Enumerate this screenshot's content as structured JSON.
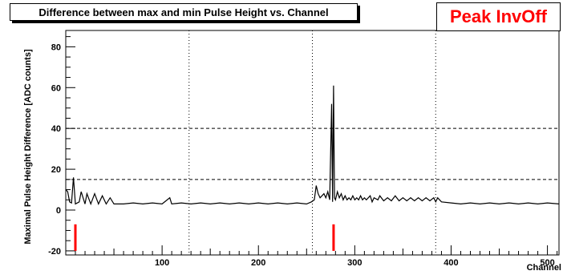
{
  "chart_data": {
    "type": "line",
    "title": "Difference between max and min Pulse Height vs. Channel",
    "annotation": "Peak InvOff",
    "xlabel": "Channel",
    "ylabel": "Maximal Pulse Height Difference [ADC counts]",
    "xlim": [
      0,
      512
    ],
    "ylim": [
      -22,
      88
    ],
    "x_ticks": [
      100,
      200,
      300,
      400,
      500
    ],
    "y_ticks": [
      -20,
      0,
      20,
      40,
      60,
      80
    ],
    "x_tick_labels": [
      "100",
      "200",
      "300",
      "400",
      "500"
    ],
    "y_tick_labels": [
      "-20",
      "0",
      "20",
      "40",
      "60",
      "80"
    ],
    "vertical_dashed_lines_x": [
      128,
      256,
      384
    ],
    "horizontal_dashed_lines_y": [
      15,
      40
    ],
    "series": [
      {
        "color": "#000000",
        "points": [
          [
            0,
            10
          ],
          [
            2,
            9
          ],
          [
            4,
            4
          ],
          [
            6,
            3.5
          ],
          [
            8,
            16
          ],
          [
            10,
            3
          ],
          [
            14,
            4
          ],
          [
            16,
            9
          ],
          [
            20,
            3
          ],
          [
            22,
            8
          ],
          [
            26,
            3
          ],
          [
            30,
            8
          ],
          [
            34,
            3
          ],
          [
            38,
            7
          ],
          [
            42,
            3
          ],
          [
            46,
            6
          ],
          [
            50,
            3
          ],
          [
            60,
            3
          ],
          [
            70,
            3.5
          ],
          [
            80,
            3
          ],
          [
            90,
            3.5
          ],
          [
            100,
            3
          ],
          [
            108,
            6
          ],
          [
            110,
            3
          ],
          [
            120,
            3.5
          ],
          [
            130,
            3
          ],
          [
            140,
            3.5
          ],
          [
            150,
            3
          ],
          [
            160,
            3.5
          ],
          [
            170,
            3
          ],
          [
            180,
            3.5
          ],
          [
            190,
            3
          ],
          [
            200,
            3.5
          ],
          [
            210,
            3
          ],
          [
            220,
            3.5
          ],
          [
            230,
            3
          ],
          [
            240,
            3.5
          ],
          [
            250,
            3
          ],
          [
            255,
            4
          ],
          [
            258,
            5
          ],
          [
            260,
            12
          ],
          [
            262,
            8
          ],
          [
            264,
            6
          ],
          [
            266,
            7
          ],
          [
            268,
            8
          ],
          [
            270,
            6
          ],
          [
            272,
            9
          ],
          [
            274,
            5
          ],
          [
            276,
            52
          ],
          [
            277,
            4
          ],
          [
            278,
            61
          ],
          [
            279,
            6
          ],
          [
            280,
            5
          ],
          [
            282,
            9
          ],
          [
            284,
            6
          ],
          [
            286,
            8
          ],
          [
            288,
            5
          ],
          [
            290,
            7
          ],
          [
            292,
            5
          ],
          [
            294,
            6
          ],
          [
            296,
            5
          ],
          [
            298,
            7
          ],
          [
            300,
            5
          ],
          [
            302,
            6
          ],
          [
            304,
            5
          ],
          [
            306,
            7
          ],
          [
            308,
            5
          ],
          [
            310,
            6
          ],
          [
            312,
            5
          ],
          [
            316,
            7
          ],
          [
            318,
            4
          ],
          [
            320,
            6
          ],
          [
            324,
            5
          ],
          [
            326,
            7
          ],
          [
            330,
            4.5
          ],
          [
            334,
            6
          ],
          [
            338,
            4.5
          ],
          [
            342,
            7
          ],
          [
            346,
            4.5
          ],
          [
            350,
            6
          ],
          [
            354,
            4.5
          ],
          [
            358,
            6
          ],
          [
            362,
            4.5
          ],
          [
            366,
            6
          ],
          [
            370,
            4.5
          ],
          [
            374,
            6
          ],
          [
            378,
            4.5
          ],
          [
            382,
            6
          ],
          [
            384,
            4
          ],
          [
            386,
            6
          ],
          [
            390,
            4
          ],
          [
            400,
            3.5
          ],
          [
            410,
            3
          ],
          [
            420,
            3.5
          ],
          [
            430,
            3
          ],
          [
            440,
            3.5
          ],
          [
            450,
            3
          ],
          [
            460,
            3.5
          ],
          [
            470,
            3
          ],
          [
            480,
            3.5
          ],
          [
            490,
            3
          ],
          [
            500,
            3.5
          ],
          [
            512,
            3
          ]
        ]
      },
      {
        "color": "#ff0000",
        "bars": [
          {
            "x": 10,
            "from": -7,
            "to": -20
          },
          {
            "x": 278,
            "from": -7,
            "to": -20
          }
        ]
      }
    ],
    "grid": "dashed reference lines at channel 128, 256, 384 and at 15, 40"
  }
}
